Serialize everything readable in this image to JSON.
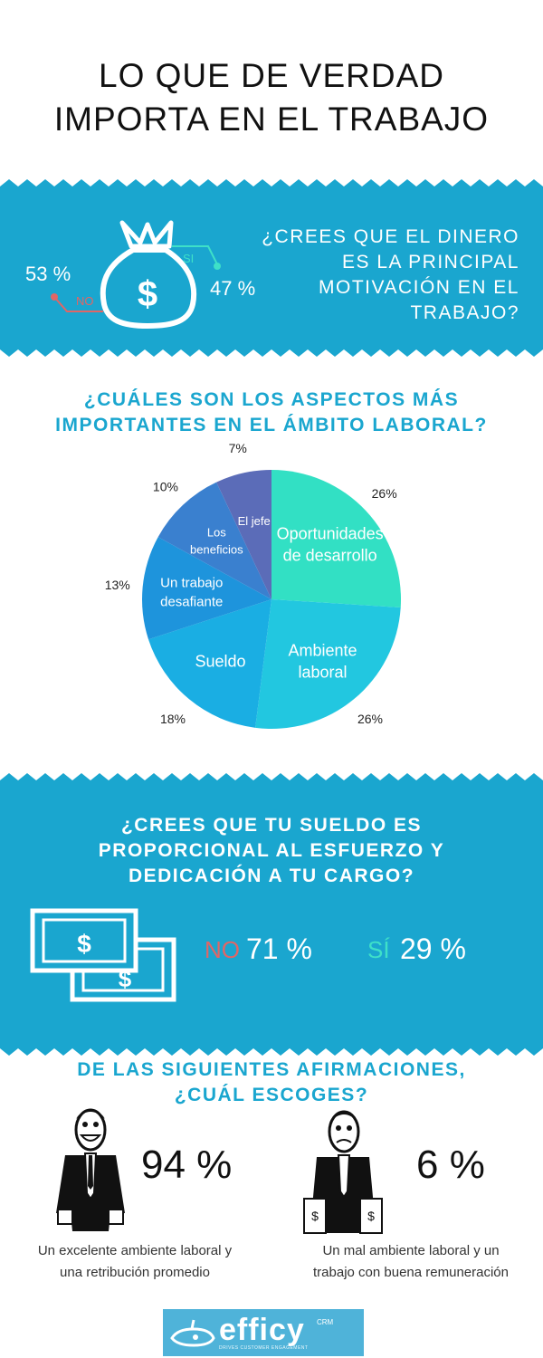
{
  "title_line1": "LO QUE DE VERDAD",
  "title_line2": "IMPORTA EN EL TRABAJO",
  "colors": {
    "band": "#1aa6cf",
    "title_teal": "#1aa6cf",
    "no_red": "#e06666",
    "si_teal": "#3ee0c8"
  },
  "q1": {
    "question_l1": "¿CREES QUE EL DINERO",
    "question_l2": "ES LA PRINCIPAL",
    "question_l3": "MOTIVACIÓN EN EL",
    "question_l4": "TRABAJO?",
    "no_label": "NO",
    "no_value": "53 %",
    "si_label": "SI",
    "si_value": "47 %",
    "icon": "money-bag-icon"
  },
  "q2": {
    "title_l1": "¿CUÁLES SON LOS ASPECTOS MÁS",
    "title_l2": "IMPORTANTES EN EL ÁMBITO LABORAL?"
  },
  "chart_data": {
    "type": "pie",
    "title": "¿CUÁLES SON LOS ASPECTOS MÁS IMPORTANTES EN EL ÁMBITO LABORAL?",
    "slices": [
      {
        "label": [
          "Oportunidades",
          "de desarrollo"
        ],
        "value": 26,
        "pct_label": "26%",
        "color": "#32e0c4"
      },
      {
        "label": [
          "Ambiente",
          "laboral"
        ],
        "value": 26,
        "pct_label": "26%",
        "color": "#22c7e0"
      },
      {
        "label": [
          "Sueldo"
        ],
        "value": 18,
        "pct_label": "18%",
        "color": "#1aaee3"
      },
      {
        "label": [
          "Un trabajo",
          "desafiante"
        ],
        "value": 13,
        "pct_label": "13%",
        "color": "#1e94dc"
      },
      {
        "label": [
          "Los",
          "beneficios"
        ],
        "value": 10,
        "pct_label": "10%",
        "color": "#3a80cf"
      },
      {
        "label": [
          "El jefe"
        ],
        "value": 7,
        "pct_label": "7%",
        "color": "#5b6cb8"
      }
    ]
  },
  "q3": {
    "question_l1": "¿CREES QUE TU SUELDO ES",
    "question_l2": "PROPORCIONAL AL ESFUERZO Y",
    "question_l3": "DEDICACIÓN A TU CARGO?",
    "no_label": "NO",
    "no_value": "71 %",
    "si_label": "SÍ",
    "si_value": "29 %",
    "icon": "banknotes-icon"
  },
  "q4": {
    "title_l1": "DE LAS SIGUIENTES AFIRMACIONES,",
    "title_l2": "¿CUÁL ESCOGES?",
    "left_value": "94 %",
    "left_caption_l1": "Un excelente ambiente laboral y",
    "left_caption_l2": "una retribución promedio",
    "right_value": "6 %",
    "right_caption_l1": "Un mal ambiente laboral y un",
    "right_caption_l2": "trabajo con buena remuneración"
  },
  "logo": {
    "name": "efficy",
    "suffix": "CRM",
    "tagline": "DRIVES CUSTOMER ENGAGEMENT"
  }
}
